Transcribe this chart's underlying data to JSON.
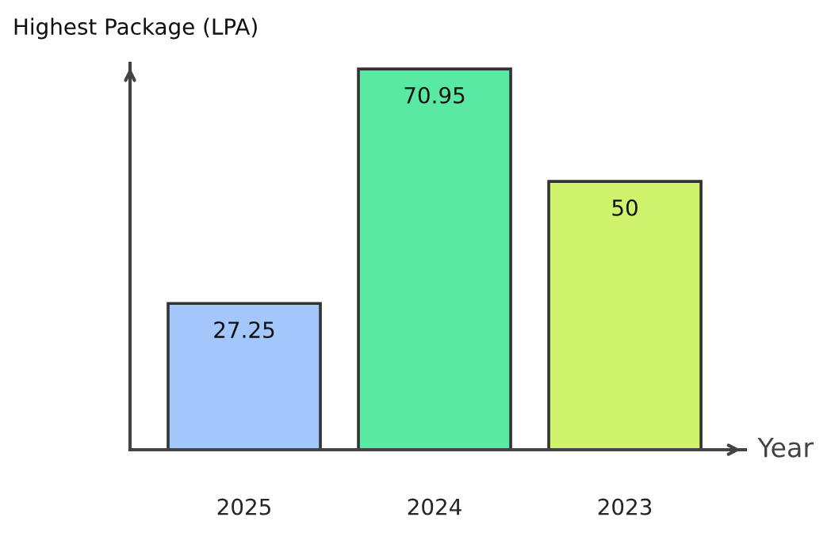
{
  "chart_data": {
    "type": "bar",
    "ylabel": "Highest Package (LPA)",
    "xlabel": "Year",
    "categories": [
      "2025",
      "2024",
      "2023"
    ],
    "values": [
      27.25,
      70.95,
      50
    ],
    "colors": [
      "#a3c6fb",
      "#5ae9a3",
      "#cff36c"
    ],
    "ylim": [
      0,
      72
    ],
    "tick_labels": "x",
    "data_labels": true,
    "grid": false,
    "legend": false
  }
}
